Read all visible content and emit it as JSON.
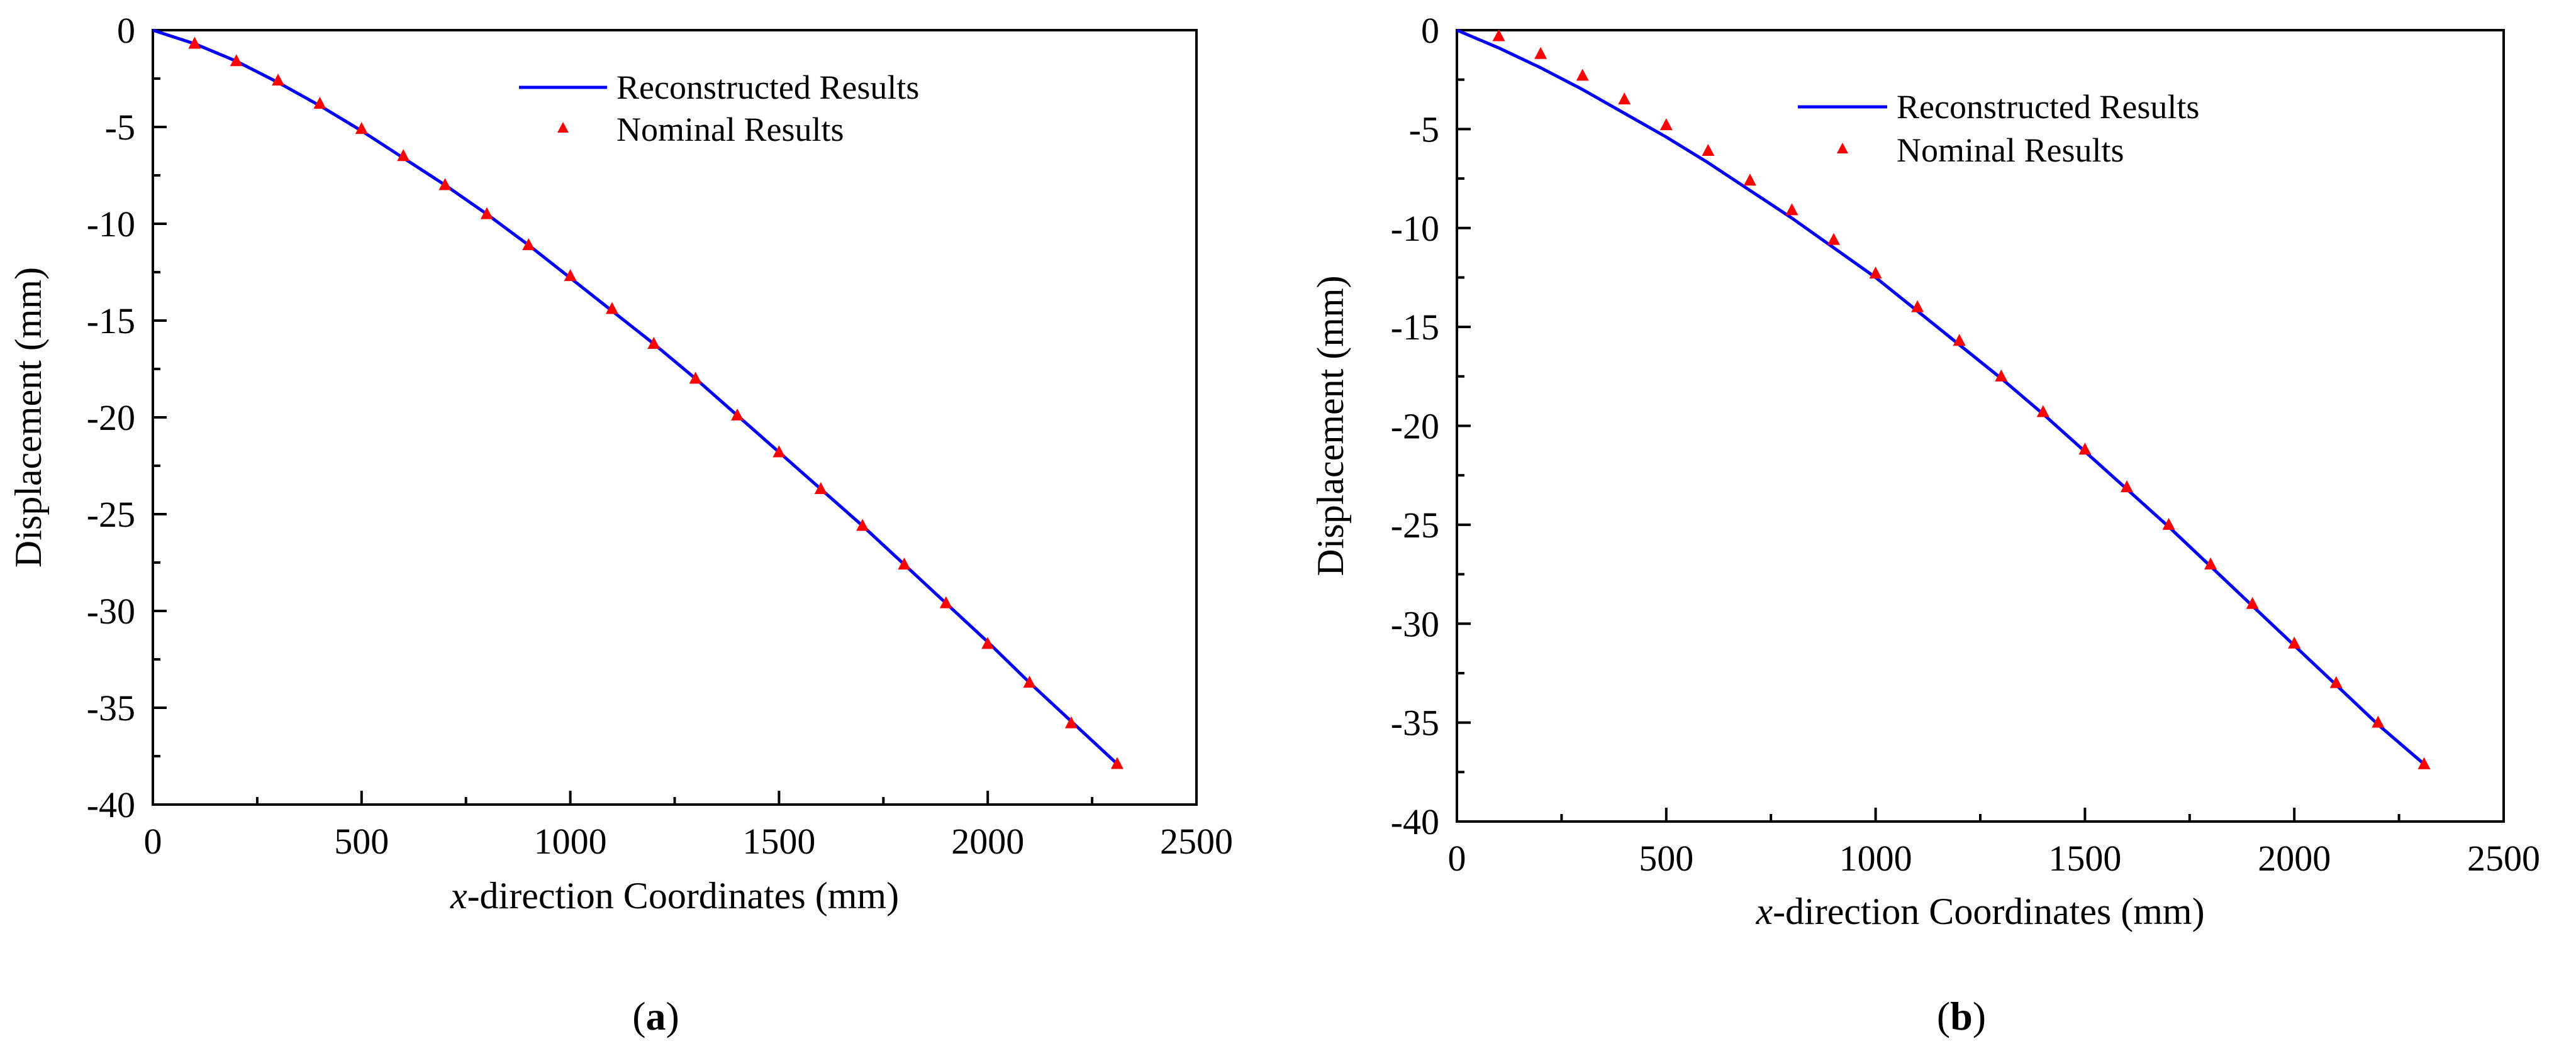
{
  "chart_data": [
    {
      "type": "line",
      "panel_label": "a",
      "xlabel_italic": "x",
      "xlabel_rest": "-direction Coordinates (mm)",
      "ylabel": "Displacement (mm)",
      "xlim": [
        0,
        2500
      ],
      "ylim": [
        -40,
        0
      ],
      "xticks": [
        0,
        500,
        1000,
        1500,
        2000,
        2500
      ],
      "yticks": [
        0,
        -5,
        -10,
        -15,
        -20,
        -25,
        -30,
        -35,
        -40
      ],
      "grid": false,
      "legend_position": "top-right",
      "series": [
        {
          "name": "Reconstructed Results",
          "style": "line",
          "color": "#0000ff",
          "x": [
            0,
            100,
            200,
            300,
            400,
            500,
            600,
            700,
            800,
            900,
            1000,
            1100,
            1200,
            1300,
            1400,
            1500,
            1600,
            1700,
            1800,
            1900,
            2000,
            2100,
            2200,
            2310
          ],
          "y": [
            0,
            -0.7,
            -1.6,
            -2.7,
            -3.9,
            -5.2,
            -6.6,
            -8.0,
            -9.5,
            -11.1,
            -12.8,
            -14.5,
            -16.2,
            -18.0,
            -19.9,
            -21.8,
            -23.7,
            -25.6,
            -27.6,
            -29.6,
            -31.6,
            -33.7,
            -35.7,
            -37.9
          ]
        },
        {
          "name": "Nominal Results",
          "style": "marker-triangle",
          "color": "#ff0000",
          "x": [
            100,
            200,
            300,
            400,
            500,
            600,
            700,
            800,
            900,
            1000,
            1100,
            1200,
            1300,
            1400,
            1500,
            1600,
            1700,
            1800,
            1900,
            2000,
            2100,
            2200,
            2310
          ],
          "y": [
            -0.7,
            -1.6,
            -2.6,
            -3.8,
            -5.1,
            -6.5,
            -8.0,
            -9.5,
            -11.1,
            -12.7,
            -14.4,
            -16.2,
            -18.0,
            -19.9,
            -21.8,
            -23.7,
            -25.6,
            -27.6,
            -29.6,
            -31.7,
            -33.7,
            -35.8,
            -37.9
          ]
        }
      ]
    },
    {
      "type": "line",
      "panel_label": "b",
      "xlabel_italic": "x",
      "xlabel_rest": "-direction Coordinates (mm)",
      "ylabel": "Displacement (mm)",
      "xlim": [
        0,
        2500
      ],
      "ylim": [
        -40,
        0
      ],
      "xticks": [
        0,
        500,
        1000,
        1500,
        2000,
        2500
      ],
      "yticks": [
        0,
        -5,
        -10,
        -15,
        -20,
        -25,
        -30,
        -35,
        -40
      ],
      "grid": false,
      "legend_position": "top-right",
      "series": [
        {
          "name": "Reconstructed Results",
          "style": "line",
          "color": "#0000ff",
          "x": [
            0,
            100,
            200,
            300,
            400,
            500,
            600,
            700,
            800,
            900,
            1000,
            1100,
            1200,
            1300,
            1400,
            1500,
            1600,
            1700,
            1800,
            1900,
            2000,
            2100,
            2200,
            2310
          ],
          "y": [
            0,
            -0.9,
            -1.9,
            -3.0,
            -4.2,
            -5.4,
            -6.7,
            -8.1,
            -9.5,
            -11.0,
            -12.5,
            -14.2,
            -15.9,
            -17.6,
            -19.4,
            -21.3,
            -23.2,
            -25.1,
            -27.1,
            -29.1,
            -31.1,
            -33.1,
            -35.1,
            -37.1
          ]
        },
        {
          "name": "Nominal Results",
          "style": "marker-triangle",
          "color": "#ff0000",
          "x": [
            100,
            200,
            300,
            400,
            500,
            600,
            700,
            800,
            900,
            1000,
            1100,
            1200,
            1300,
            1400,
            1500,
            1600,
            1700,
            1800,
            1900,
            2000,
            2100,
            2200,
            2310
          ],
          "y": [
            -0.3,
            -1.2,
            -2.3,
            -3.5,
            -4.8,
            -6.1,
            -7.6,
            -9.1,
            -10.6,
            -12.3,
            -14.0,
            -15.7,
            -17.5,
            -19.3,
            -21.2,
            -23.1,
            -25.0,
            -27.0,
            -29.0,
            -31.0,
            -33.0,
            -35.0,
            -37.1
          ]
        }
      ]
    }
  ]
}
